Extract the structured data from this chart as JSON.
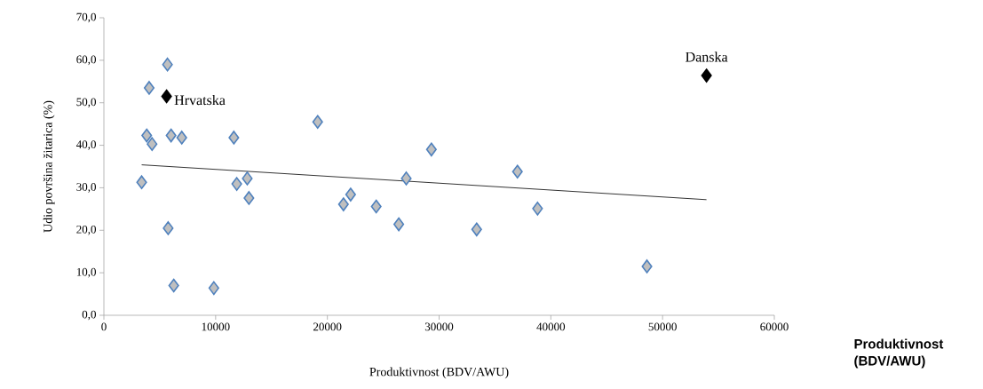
{
  "chart_data": {
    "type": "scatter",
    "xlabel": "Produktivnost (BDV/AWU)",
    "ylabel": "Udio površina žitarica (%)",
    "xlim": [
      0,
      60000
    ],
    "xticks": [
      0,
      10000,
      20000,
      30000,
      40000,
      50000,
      60000
    ],
    "ylim": [
      0,
      70
    ],
    "yticks": [
      {
        "value": 0,
        "label": "0,0"
      },
      {
        "value": 10,
        "label": "10,0"
      },
      {
        "value": 20,
        "label": "20,0"
      },
      {
        "value": 30,
        "label": "30,0"
      },
      {
        "value": 40,
        "label": "40,0"
      },
      {
        "value": 50,
        "label": "50,0"
      },
      {
        "value": 60,
        "label": "60,0"
      },
      {
        "value": 70,
        "label": "70,0"
      }
    ],
    "grid": false,
    "marker": "diamond",
    "series": [
      {
        "color": "#4f81bd",
        "x": [
          5690,
          4050,
          3830,
          4310,
          6010,
          6970,
          11630,
          19130,
          3380,
          11890,
          12830,
          12980,
          5750,
          6250,
          9840,
          21440,
          22080,
          24370,
          26390,
          27060,
          29310,
          37010,
          38810,
          33360,
          48600
        ],
        "values": [
          59.0,
          53.5,
          42.3,
          40.3,
          42.3,
          41.8,
          41.8,
          45.5,
          31.3,
          30.9,
          32.2,
          27.6,
          20.5,
          7.0,
          6.4,
          26.1,
          28.4,
          25.6,
          21.4,
          32.2,
          39.0,
          33.8,
          25.1,
          20.2,
          11.5
        ]
      },
      {
        "color": "#000000",
        "x": [
          5610,
          53930
        ],
        "values": [
          51.5,
          56.4
        ]
      },
      {
        "type": "line",
        "marker": "none",
        "color": "#000000",
        "x": [
          3380,
          53930
        ],
        "values": [
          35.4,
          27.2
        ]
      }
    ],
    "annotations": [
      {
        "text": "Hrvatska",
        "x": 5610,
        "y": 51.5
      },
      {
        "text": "Danska",
        "x": 53930,
        "y": 56.4
      },
      "**Produktivnost (BDV/AWU)**"
    ]
  }
}
